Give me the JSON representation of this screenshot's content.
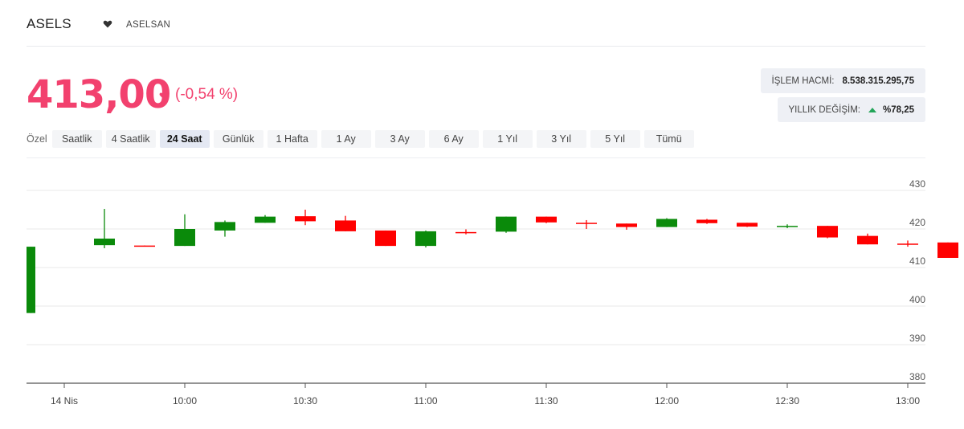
{
  "header": {
    "ticker": "ASELS",
    "company": "ASELSAN"
  },
  "price": {
    "value": "413,00",
    "change": "(-0,54 %)"
  },
  "info": {
    "volume_label": "İŞLEM HACMİ:",
    "volume_value": "8.538.315.295,75",
    "annual_label": "YILLIK DEĞİŞİM:",
    "annual_value": "%78,25"
  },
  "tabs": {
    "prefix": "Özel",
    "items": [
      {
        "label": "Saatlik"
      },
      {
        "label": "4 Saatlik"
      },
      {
        "label": "24 Saat",
        "active": true
      },
      {
        "label": "Günlük"
      },
      {
        "label": "1 Hafta"
      },
      {
        "label": "1 Ay"
      },
      {
        "label": "3 Ay"
      },
      {
        "label": "6 Ay"
      },
      {
        "label": "1 Yıl"
      },
      {
        "label": "3 Yıl"
      },
      {
        "label": "5 Yıl"
      },
      {
        "label": "Tümü"
      }
    ]
  },
  "colors": {
    "up": "#0a8a0a",
    "down": "#ff0000",
    "accent": "#f2416e",
    "grid": "#e8e8e8"
  },
  "chart_data": {
    "type": "candlestick",
    "ylim": [
      380,
      430
    ],
    "yticks": [
      380,
      390,
      400,
      410,
      420,
      430
    ],
    "xticks": [
      "14 Nis",
      "10:00",
      "10:30",
      "11:00",
      "11:30",
      "12:00",
      "12:30",
      "13:00"
    ],
    "candles": [
      {
        "time": "09:35",
        "open": 398.2,
        "high": 415.4,
        "low": 398.2,
        "close": 415.4
      },
      {
        "time": "09:40",
        "open": 415.8,
        "high": 425.2,
        "low": 415.0,
        "close": 417.5
      },
      {
        "time": "09:50",
        "open": 415.7,
        "high": 415.7,
        "low": 415.5,
        "close": 415.5
      },
      {
        "time": "10:00",
        "open": 415.6,
        "high": 423.8,
        "low": 415.6,
        "close": 420.0
      },
      {
        "time": "10:10",
        "open": 419.6,
        "high": 422.2,
        "low": 418.0,
        "close": 421.8
      },
      {
        "time": "10:20",
        "open": 421.6,
        "high": 423.6,
        "low": 421.6,
        "close": 423.2
      },
      {
        "time": "10:30",
        "open": 423.3,
        "high": 425.0,
        "low": 421.0,
        "close": 422.0
      },
      {
        "time": "10:40",
        "open": 422.2,
        "high": 423.4,
        "low": 419.4,
        "close": 419.4
      },
      {
        "time": "10:50",
        "open": 419.6,
        "high": 419.6,
        "low": 415.6,
        "close": 415.6
      },
      {
        "time": "11:00",
        "open": 415.6,
        "high": 419.6,
        "low": 415.2,
        "close": 419.4
      },
      {
        "time": "11:10",
        "open": 419.2,
        "high": 419.9,
        "low": 418.6,
        "close": 419.0
      },
      {
        "time": "11:20",
        "open": 419.3,
        "high": 423.2,
        "low": 419.0,
        "close": 423.2
      },
      {
        "time": "11:30",
        "open": 423.2,
        "high": 423.2,
        "low": 421.5,
        "close": 421.7
      },
      {
        "time": "11:40",
        "open": 421.6,
        "high": 422.3,
        "low": 420.0,
        "close": 421.3
      },
      {
        "time": "11:50",
        "open": 421.4,
        "high": 421.4,
        "low": 419.8,
        "close": 420.5
      },
      {
        "time": "12:00",
        "open": 420.5,
        "high": 422.8,
        "low": 420.5,
        "close": 422.6
      },
      {
        "time": "12:10",
        "open": 422.4,
        "high": 422.6,
        "low": 421.3,
        "close": 421.5
      },
      {
        "time": "12:20",
        "open": 421.6,
        "high": 421.6,
        "low": 420.5,
        "close": 420.6
      },
      {
        "time": "12:30",
        "open": 420.6,
        "high": 421.2,
        "low": 420.2,
        "close": 420.8
      },
      {
        "time": "12:40",
        "open": 420.8,
        "high": 420.8,
        "low": 417.6,
        "close": 417.8
      },
      {
        "time": "12:50",
        "open": 418.2,
        "high": 418.8,
        "low": 416.0,
        "close": 416.0
      },
      {
        "time": "13:00",
        "open": 416.2,
        "high": 417.0,
        "low": 415.4,
        "close": 416.0
      },
      {
        "time": "13:10",
        "open": 416.5,
        "high": 416.5,
        "low": 412.5,
        "close": 412.5
      }
    ]
  }
}
